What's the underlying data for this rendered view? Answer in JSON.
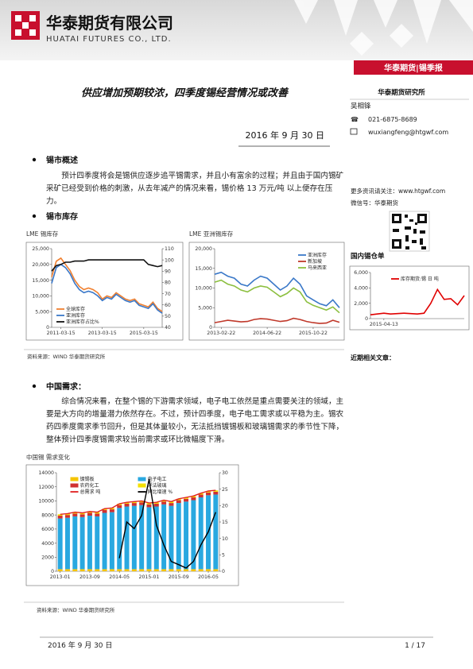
{
  "header": {
    "company_cn": "华泰期货有限公司",
    "company_en": "HUATAI FUTURES CO., LTD.",
    "tag": "华泰期货|锡季报"
  },
  "report": {
    "title": "供应增加预期较浓，四季度锡经营情况或改善",
    "date": "2016 年 9 月 30 日"
  },
  "sidebar": {
    "org": "华泰期货研究所",
    "analyst": "吴相锋",
    "phone": "021-6875-8689",
    "email": "wuxiangfeng@htgwf.com",
    "follow": "更多资讯请关注：www.htgwf.com",
    "wechat": "微信号：华泰期货",
    "related": "近期相关文章："
  },
  "sections": [
    {
      "heading": "锡市概述",
      "text": "预计四季度将会是锡供应逐步追平锡需求，并且小有富余的过程；并且由于国内锡矿采矿已经受到价格的刺激，从去年减产的情况来看，锡价格 13 万元/吨 以上便存在压力。"
    },
    {
      "heading": "锡市库存",
      "source": "资料来源：WIND 华泰期货研究所"
    },
    {
      "heading": "中国需求：",
      "text": "综合情况来看，在整个锡的下游需求领域，电子电工依然是重点需要关注的领域，主要是大方向的增量潜力依然存在。不过，预计四季度，电子电工需求或以平稳为主。锡农药四季度需求季节回升，但是其体量较小，无法抵挡镀锡板和玻璃锡需求的季节性下降，整体预计四季度锡需求较当前需求或环比微幅度下滑。",
      "source": "资料来源：WIND 华泰期货研究所"
    }
  ],
  "footer": {
    "date": "2016 年 9 月 30 日",
    "page": "1 / 17"
  },
  "chart_data": [
    {
      "type": "line",
      "title": "LME 锡库存",
      "legend": "lower left",
      "categories": [
        null,
        null,
        "2011-03-15",
        null,
        null,
        null,
        null,
        null,
        null,
        null,
        null,
        "2013-03-15",
        null,
        null,
        null,
        null,
        null,
        null,
        null,
        null,
        "2015-03-15",
        null,
        null,
        null,
        null
      ],
      "ylim": [
        0,
        25000
      ],
      "yticks": [
        0,
        {
          "value": 5000,
          "label": "5,000"
        },
        {
          "value": 10000,
          "label": "10,000"
        },
        {
          "value": 15000,
          "label": "15,000"
        },
        {
          "value": 20000,
          "label": "20,000"
        },
        {
          "value": 25000,
          "label": "25,000"
        }
      ],
      "y2lim": [
        40,
        110
      ],
      "y2ticks": [
        40,
        50,
        60,
        70,
        80,
        90,
        100,
        110
      ],
      "series": [
        {
          "name": "全球库存",
          "color": "#f08030",
          "values": [
            16000,
            21000,
            22000,
            20000,
            18000,
            15000,
            13000,
            12000,
            12500,
            12000,
            11000,
            9000,
            10000,
            9500,
            11000,
            10000,
            9000,
            8500,
            9000,
            7500,
            7000,
            6500,
            8000,
            6000,
            5000
          ]
        },
        {
          "name": "亚洲库存",
          "color": "#3a78c8",
          "values": [
            14000,
            19000,
            20000,
            19000,
            17000,
            14000,
            12000,
            11000,
            11500,
            11000,
            10000,
            8500,
            9500,
            9000,
            10500,
            9500,
            8500,
            8000,
            8500,
            7000,
            6500,
            6000,
            7500,
            5500,
            4500
          ]
        },
        {
          "name": "亚洲库存占比%",
          "color": "#111111",
          "axis": "y2",
          "values": [
            90,
            95,
            96,
            98,
            98,
            99,
            99,
            99,
            100,
            100,
            100,
            100,
            100,
            100,
            100,
            100,
            100,
            100,
            100,
            100,
            100,
            96,
            95,
            94,
            95
          ]
        }
      ]
    },
    {
      "type": "line",
      "title": "LME 亚洲锡库存",
      "legend": "upper right",
      "categories": [
        null,
        "2013-02-22",
        null,
        null,
        null,
        null,
        null,
        null,
        "2014-06-22",
        null,
        null,
        null,
        null,
        null,
        null,
        "2015-10-22",
        null,
        null,
        null,
        null
      ],
      "ylim": [
        0,
        20000
      ],
      "yticks": [
        0,
        {
          "value": 5000,
          "label": "5,000"
        },
        {
          "value": 10000,
          "label": "10,000"
        },
        {
          "value": 15000,
          "label": "15,000"
        },
        {
          "value": 20000,
          "label": "20,000"
        }
      ],
      "series": [
        {
          "name": "亚洲库存",
          "color": "#3a78c8",
          "values": [
            13500,
            14000,
            13000,
            12500,
            11000,
            10500,
            12000,
            13000,
            12500,
            11000,
            9500,
            10500,
            12500,
            11000,
            8000,
            7000,
            6000,
            5500,
            7000,
            5000
          ]
        },
        {
          "name": "新加坡",
          "color": "#c0392b",
          "values": [
            1200,
            1500,
            1800,
            1600,
            1400,
            1500,
            2000,
            2200,
            2100,
            1800,
            1500,
            1700,
            2300,
            2000,
            1500,
            1200,
            1000,
            1100,
            1800,
            1300
          ]
        },
        {
          "name": "马来西亚",
          "color": "#8cbf3f",
          "values": [
            11500,
            12000,
            11000,
            10500,
            9500,
            9000,
            10000,
            10500,
            10200,
            9000,
            7800,
            8600,
            10000,
            9000,
            6500,
            5600,
            5000,
            4400,
            5200,
            3700
          ]
        }
      ]
    },
    {
      "type": "line",
      "title": "国内锡仓单",
      "legend": "upper right",
      "categories": [
        null,
        null,
        "2015-04-13",
        null,
        null,
        null,
        null,
        null,
        null,
        null,
        null,
        null,
        null,
        null,
        null
      ],
      "ylim": [
        0,
        6000
      ],
      "yticks": [
        0,
        {
          "value": 2000,
          "label": "2,000"
        },
        {
          "value": 4000,
          "label": "4,000"
        },
        {
          "value": 6000,
          "label": "6,000"
        }
      ],
      "series": [
        {
          "name": "库存期货:锡 日 吨",
          "color": "#e00000",
          "values": [
            500,
            600,
            700,
            600,
            650,
            700,
            650,
            600,
            700,
            2000,
            3800,
            2500,
            2600,
            1800,
            3000
          ]
        }
      ]
    },
    {
      "type": "bar",
      "title": "中国锡 需求变化",
      "legend": "upper center",
      "categories": [
        "2013-01",
        null,
        null,
        null,
        "2013-09",
        null,
        null,
        null,
        "2014-05",
        null,
        null,
        null,
        "2015-01",
        null,
        null,
        null,
        "2015-09",
        null,
        null,
        null,
        "2016-05",
        null
      ],
      "ylim": [
        0,
        14000
      ],
      "yticks": [
        0,
        2000,
        4000,
        6000,
        8000,
        10000,
        12000,
        14000
      ],
      "y2lim": [
        0,
        30
      ],
      "y2ticks": [
        0,
        5,
        10,
        15,
        20,
        25,
        30
      ],
      "series": [
        {
          "name": "镀锡板",
          "color": "#f5c400",
          "type": "bar",
          "values": [
            300,
            300,
            300,
            300,
            300,
            300,
            300,
            300,
            300,
            300,
            300,
            300,
            300,
            300,
            300,
            300,
            300,
            300,
            300,
            300,
            300,
            300
          ]
        },
        {
          "name": "电子电工",
          "color": "#29a8e0",
          "type": "bar",
          "values": [
            7200,
            7300,
            7500,
            7400,
            7600,
            7500,
            8000,
            8100,
            8700,
            8900,
            9000,
            9100,
            8800,
            8900,
            9200,
            9000,
            9400,
            9600,
            9800,
            10200,
            10500,
            10600
          ]
        },
        {
          "name": "农药化工",
          "color": "#d03030",
          "type": "bar",
          "values": [
            400,
            400,
            400,
            400,
            400,
            400,
            400,
            400,
            400,
            400,
            400,
            400,
            400,
            400,
            400,
            400,
            400,
            400,
            400,
            400,
            400,
            400
          ]
        },
        {
          "name": "浮法玻璃",
          "color": "#f5e000",
          "type": "bar",
          "values": [
            200,
            200,
            200,
            200,
            200,
            200,
            200,
            200,
            200,
            200,
            200,
            200,
            200,
            200,
            200,
            200,
            200,
            200,
            200,
            200,
            200,
            200
          ]
        },
        {
          "name": "总需求 吨",
          "color": "#e02020",
          "type": "line",
          "values": [
            8100,
            8200,
            8400,
            8300,
            8500,
            8400,
            8900,
            9000,
            9600,
            9800,
            9900,
            10000,
            9700,
            9800,
            10100,
            9900,
            10300,
            10500,
            10700,
            11100,
            11400,
            11500
          ]
        },
        {
          "name": "同比增速 %",
          "color": "#000000",
          "type": "line",
          "axis": "y2",
          "values": [
            null,
            null,
            null,
            null,
            null,
            null,
            null,
            null,
            4,
            15,
            13,
            17,
            28,
            14,
            8,
            3,
            2,
            1,
            3,
            8,
            12,
            18
          ]
        }
      ]
    }
  ]
}
